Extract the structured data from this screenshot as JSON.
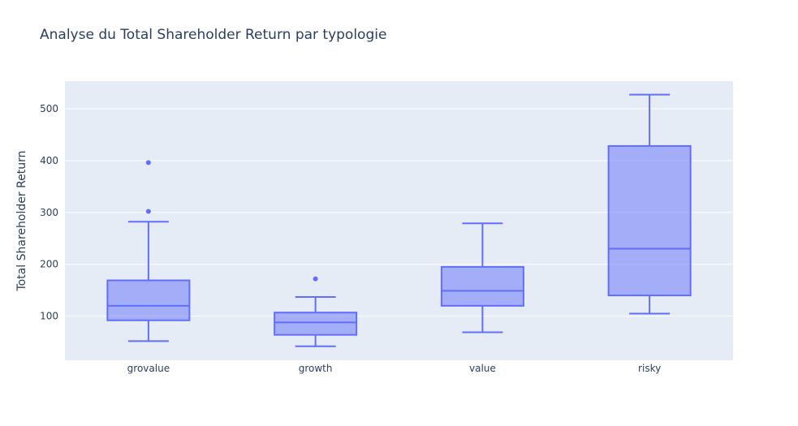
{
  "chart_data": {
    "type": "box",
    "title": "Analyse du Total Shareholder Return par typologie",
    "xlabel": "",
    "ylabel": "Total Shareholder Return",
    "ylim": [
      15,
      553
    ],
    "yticks": [
      100,
      200,
      300,
      400,
      500
    ],
    "grid": true,
    "colors": {
      "box_fill": "rgba(99,110,250,0.5)",
      "box_line": "#636efa",
      "plot_bg": "#e5ecf6",
      "grid": "#ffffff",
      "text": "#2a3f5f"
    },
    "categories": [
      "grovalue",
      "growth",
      "value",
      "risky"
    ],
    "boxes": [
      {
        "category": "grovalue",
        "min": 52,
        "q1": 92,
        "median": 120,
        "q3": 169,
        "max": 282,
        "outliers": [
          302,
          396
        ]
      },
      {
        "category": "growth",
        "min": 42,
        "q1": 64,
        "median": 88,
        "q3": 107,
        "max": 137,
        "outliers": [
          172
        ]
      },
      {
        "category": "value",
        "min": 69,
        "q1": 120,
        "median": 149,
        "q3": 195,
        "max": 279,
        "outliers": []
      },
      {
        "category": "risky",
        "min": 105,
        "q1": 140,
        "median": 230,
        "q3": 428,
        "max": 527,
        "outliers": []
      }
    ]
  }
}
